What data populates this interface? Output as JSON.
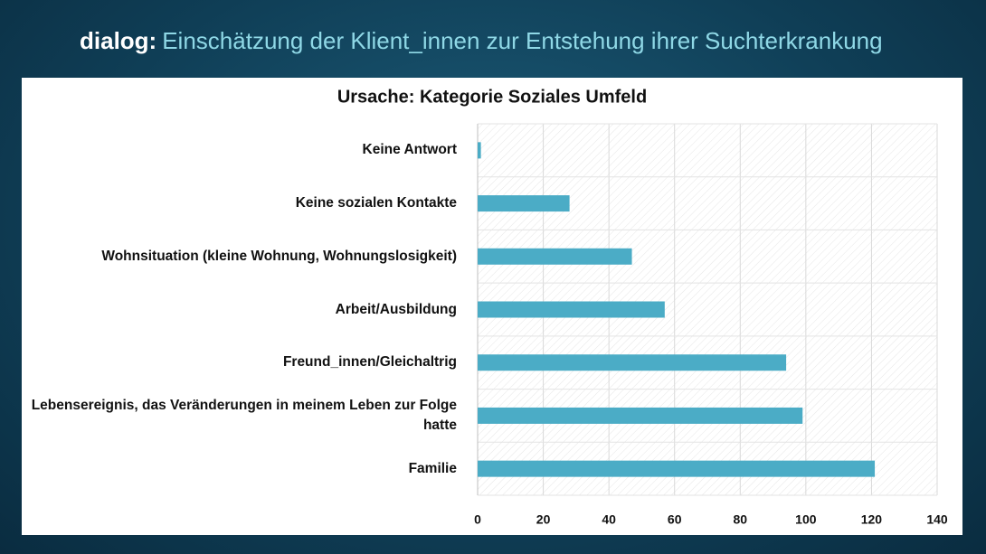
{
  "header": {
    "brand": "dialog:",
    "title": "Einschätzung der Klient_innen zur Entstehung ihrer Suchterkrankung"
  },
  "chart_data": {
    "type": "bar",
    "orientation": "horizontal",
    "title": "Ursache: Kategorie Soziales Umfeld",
    "categories": [
      "Keine Antwort",
      "Keine sozialen Kontakte",
      "Wohnsituation (kleine Wohnung, Wohnungslosigkeit)",
      "Arbeit/Ausbildung",
      "Freund_innen/Gleichaltrig",
      "Lebensereignis, das Veränderungen in meinem Leben zur Folge hatte",
      "Familie"
    ],
    "values": [
      1,
      28,
      47,
      57,
      94,
      99,
      121
    ],
    "color": "#4bacc6",
    "xlim": [
      0,
      140
    ],
    "xticks": [
      0,
      20,
      40,
      60,
      80,
      100,
      120,
      140
    ],
    "grid": true
  }
}
